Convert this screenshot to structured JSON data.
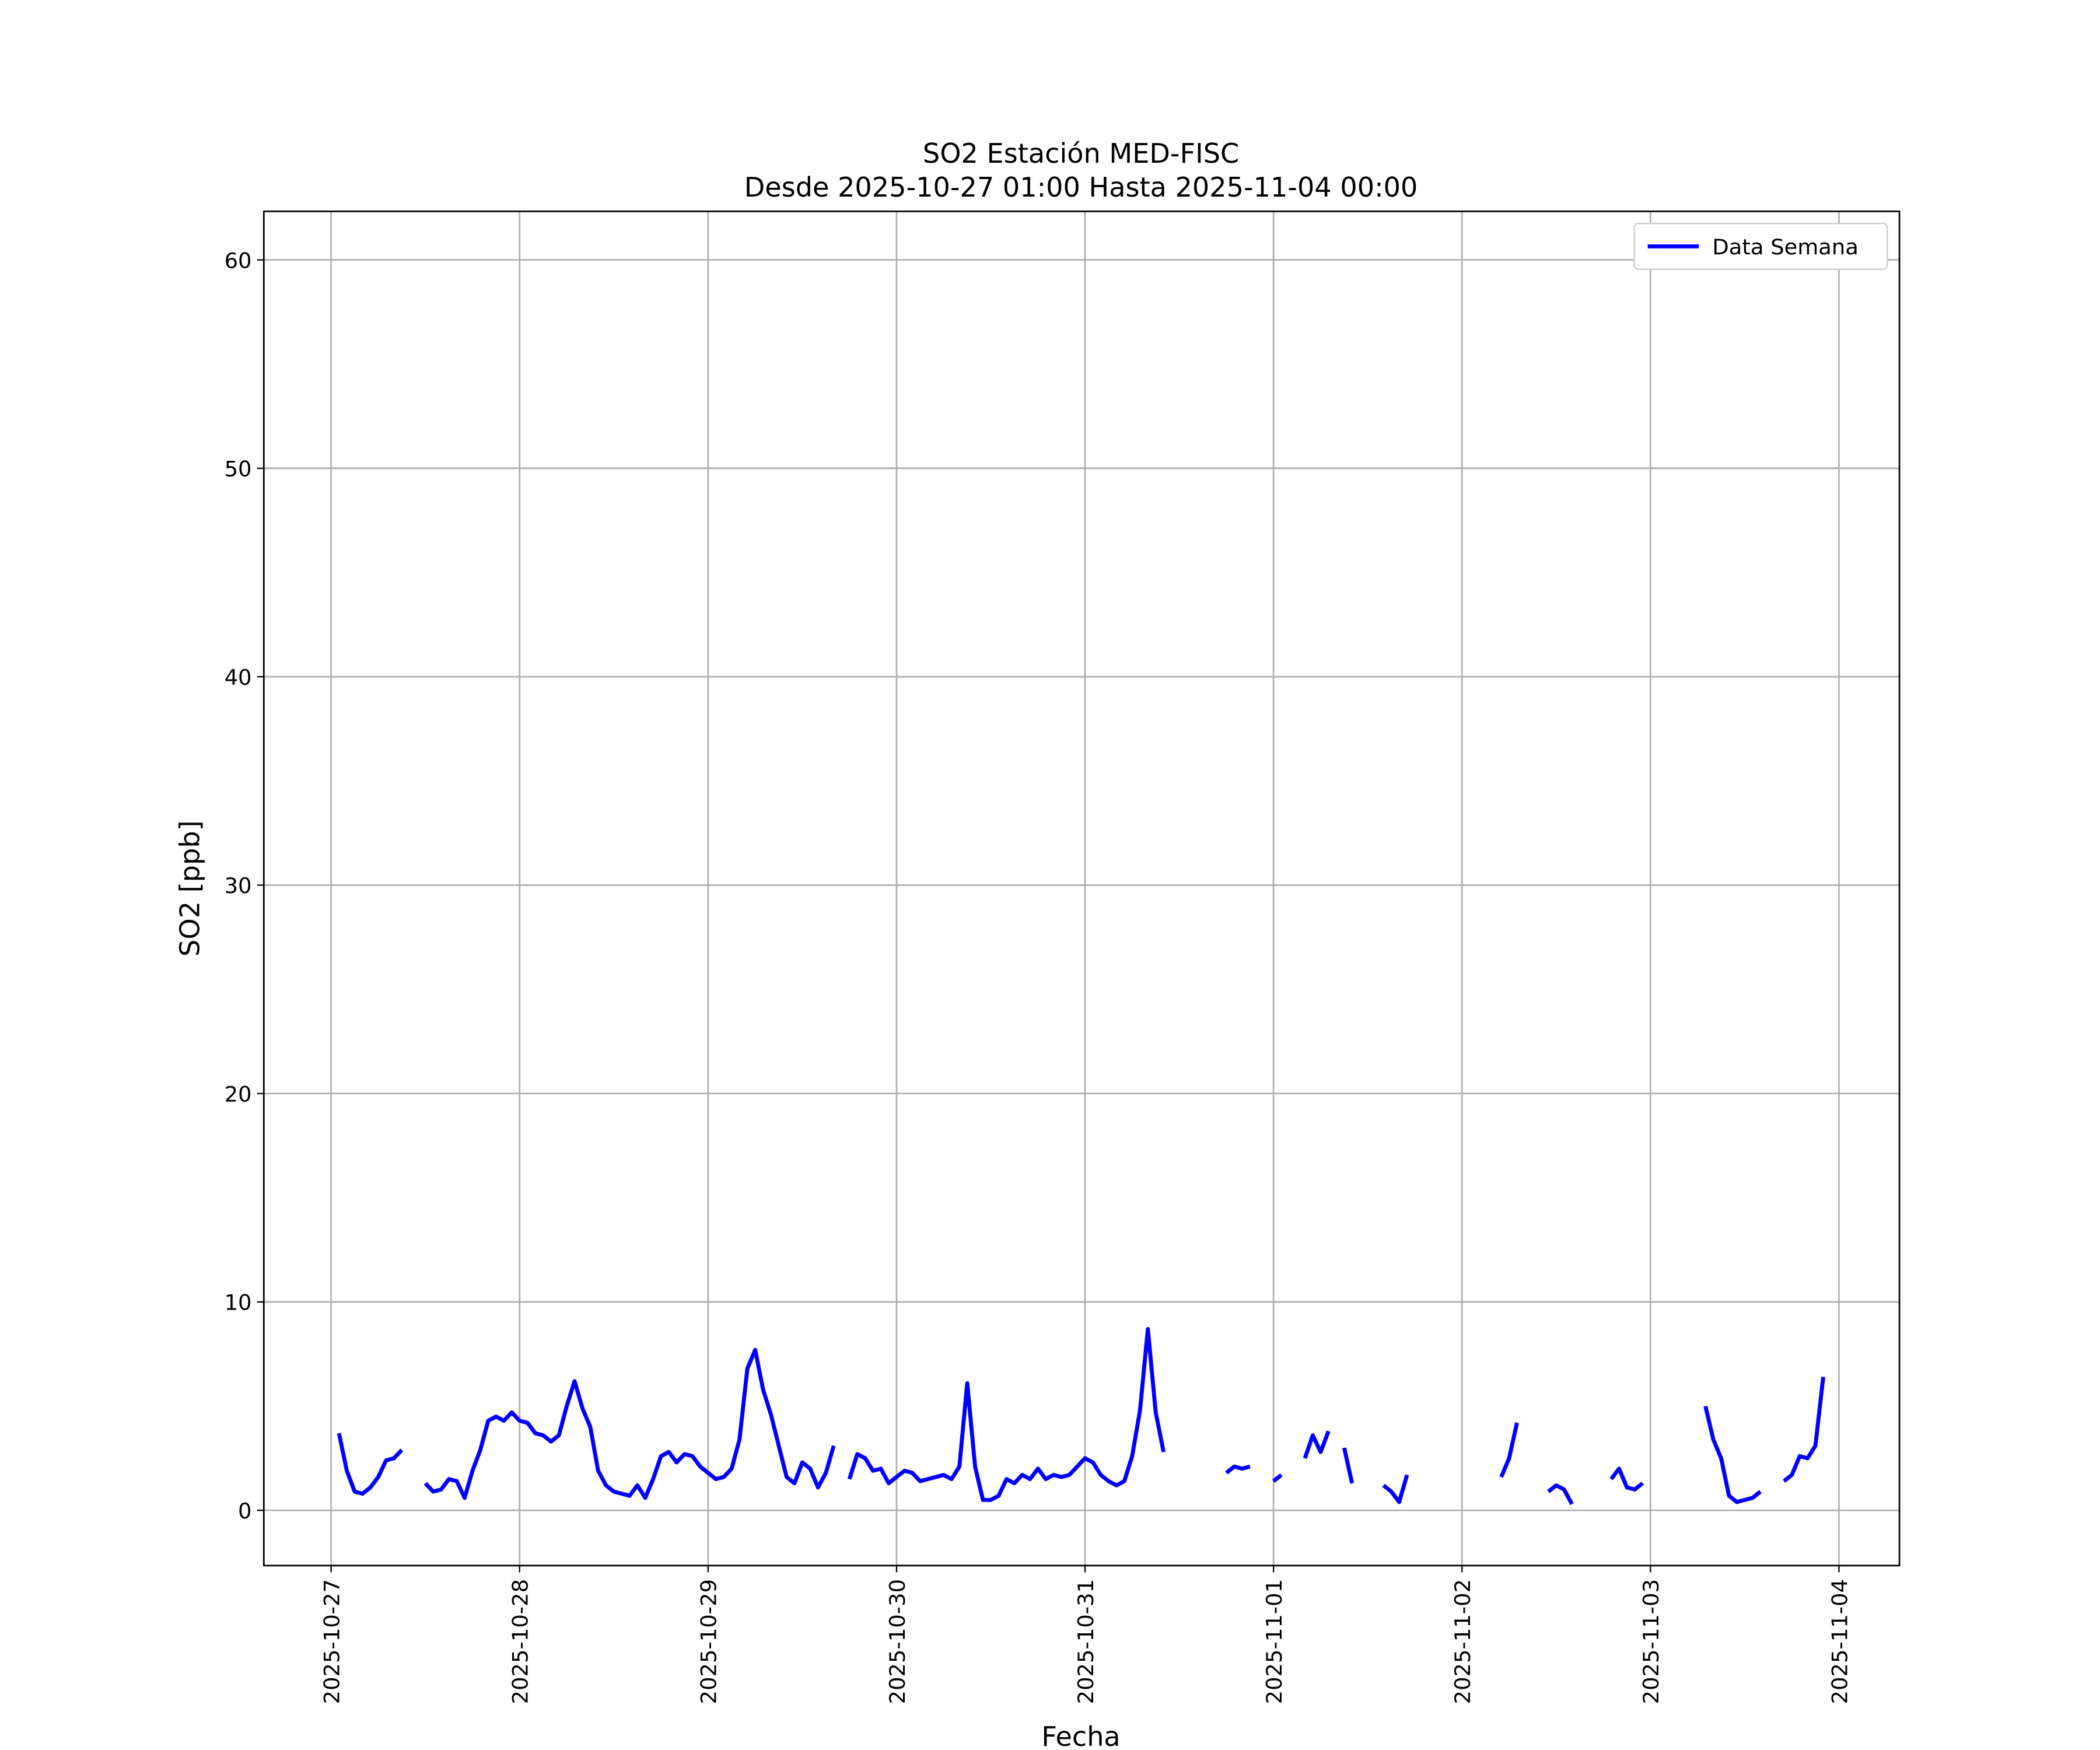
{
  "chart_data": {
    "type": "line",
    "title": "SO2 Estación MED-FISC",
    "subtitle": "Desde 2025-10-27 01:00 Hasta 2025-11-04 00:00",
    "x_label": "Fecha",
    "y_label": "SO2 [ppb]",
    "grid": true,
    "legend": "upper right",
    "xlim": [
      "2025-10-26 15:26",
      "2025-11-04 07:42"
    ],
    "xticks": [
      "2025-10-27",
      "2025-10-28",
      "2025-10-29",
      "2025-10-30",
      "2025-10-31",
      "2025-11-01",
      "2025-11-02",
      "2025-11-03",
      "2025-11-04"
    ],
    "ylim": [
      -2.65,
      62.33
    ],
    "yticks": [
      0,
      10,
      20,
      30,
      40,
      50,
      60
    ],
    "x": [
      "2025-10-27 01:00",
      "2025-10-27 02:00",
      "2025-10-27 03:00",
      "2025-10-27 04:00",
      "2025-10-27 05:00",
      "2025-10-27 06:00",
      "2025-10-27 07:00",
      "2025-10-27 08:00",
      "2025-10-27 09:00",
      "2025-10-27 10:00",
      "2025-10-27 11:00",
      "2025-10-27 12:00",
      "2025-10-27 13:00",
      "2025-10-27 14:00",
      "2025-10-27 15:00",
      "2025-10-27 16:00",
      "2025-10-27 17:00",
      "2025-10-27 18:00",
      "2025-10-27 19:00",
      "2025-10-27 20:00",
      "2025-10-27 21:00",
      "2025-10-27 22:00",
      "2025-10-27 23:00",
      "2025-10-28 00:00",
      "2025-10-28 01:00",
      "2025-10-28 02:00",
      "2025-10-28 03:00",
      "2025-10-28 04:00",
      "2025-10-28 05:00",
      "2025-10-28 06:00",
      "2025-10-28 07:00",
      "2025-10-28 08:00",
      "2025-10-28 09:00",
      "2025-10-28 10:00",
      "2025-10-28 11:00",
      "2025-10-28 12:00",
      "2025-10-28 13:00",
      "2025-10-28 14:00",
      "2025-10-28 15:00",
      "2025-10-28 16:00",
      "2025-10-28 17:00",
      "2025-10-28 18:00",
      "2025-10-28 19:00",
      "2025-10-28 20:00",
      "2025-10-28 21:00",
      "2025-10-28 22:00",
      "2025-10-28 23:00",
      "2025-10-29 00:00",
      "2025-10-29 01:00",
      "2025-10-29 02:00",
      "2025-10-29 03:00",
      "2025-10-29 04:00",
      "2025-10-29 05:00",
      "2025-10-29 06:00",
      "2025-10-29 07:00",
      "2025-10-29 08:00",
      "2025-10-29 09:00",
      "2025-10-29 10:00",
      "2025-10-29 11:00",
      "2025-10-29 12:00",
      "2025-10-29 13:00",
      "2025-10-29 14:00",
      "2025-10-29 15:00",
      "2025-10-29 16:00",
      "2025-10-29 17:00",
      "2025-10-29 18:00",
      "2025-10-29 19:00",
      "2025-10-29 20:00",
      "2025-10-29 21:00",
      "2025-10-29 22:00",
      "2025-10-29 23:00",
      "2025-10-30 00:00",
      "2025-10-30 01:00",
      "2025-10-30 02:00",
      "2025-10-30 03:00",
      "2025-10-30 04:00",
      "2025-10-30 05:00",
      "2025-10-30 06:00",
      "2025-10-30 07:00",
      "2025-10-30 08:00",
      "2025-10-30 09:00",
      "2025-10-30 10:00",
      "2025-10-30 11:00",
      "2025-10-30 12:00",
      "2025-10-30 13:00",
      "2025-10-30 14:00",
      "2025-10-30 15:00",
      "2025-10-30 16:00",
      "2025-10-30 17:00",
      "2025-10-30 18:00",
      "2025-10-30 19:00",
      "2025-10-30 20:00",
      "2025-10-30 21:00",
      "2025-10-30 22:00",
      "2025-10-30 23:00",
      "2025-10-31 00:00",
      "2025-10-31 01:00",
      "2025-10-31 02:00",
      "2025-10-31 03:00",
      "2025-10-31 04:00",
      "2025-10-31 05:00",
      "2025-10-31 06:00",
      "2025-10-31 07:00",
      "2025-10-31 08:00",
      "2025-10-31 09:00",
      "2025-10-31 10:00",
      "2025-10-31 11:00",
      "2025-10-31 12:00",
      "2025-10-31 13:00",
      "2025-10-31 14:00",
      "2025-10-31 15:00",
      "2025-10-31 16:00",
      "2025-10-31 17:00",
      "2025-10-31 18:00",
      "2025-10-31 19:00",
      "2025-10-31 20:00",
      "2025-10-31 21:00",
      "2025-10-31 22:00",
      "2025-10-31 23:00",
      "2025-11-01 00:00",
      "2025-11-01 01:00",
      "2025-11-01 02:00",
      "2025-11-01 03:00",
      "2025-11-01 04:00",
      "2025-11-01 05:00",
      "2025-11-01 06:00",
      "2025-11-01 07:00",
      "2025-11-01 08:00",
      "2025-11-01 09:00",
      "2025-11-01 10:00",
      "2025-11-01 11:00",
      "2025-11-01 12:00",
      "2025-11-01 13:00",
      "2025-11-01 14:00",
      "2025-11-01 15:00",
      "2025-11-01 16:00",
      "2025-11-01 17:00",
      "2025-11-01 18:00",
      "2025-11-01 19:00",
      "2025-11-01 20:00",
      "2025-11-01 21:00",
      "2025-11-01 22:00",
      "2025-11-01 23:00",
      "2025-11-02 00:00",
      "2025-11-02 01:00",
      "2025-11-02 02:00",
      "2025-11-02 03:00",
      "2025-11-02 04:00",
      "2025-11-02 05:00",
      "2025-11-02 06:00",
      "2025-11-02 07:00",
      "2025-11-02 08:00",
      "2025-11-02 09:00",
      "2025-11-02 10:00",
      "2025-11-02 11:00",
      "2025-11-02 12:00",
      "2025-11-02 13:00",
      "2025-11-02 14:00",
      "2025-11-02 15:00",
      "2025-11-02 16:00",
      "2025-11-02 17:00",
      "2025-11-02 18:00",
      "2025-11-02 19:00",
      "2025-11-02 20:00",
      "2025-11-02 21:00",
      "2025-11-02 22:00",
      "2025-11-02 23:00",
      "2025-11-03 00:00",
      "2025-11-03 01:00",
      "2025-11-03 02:00",
      "2025-11-03 03:00",
      "2025-11-03 04:00",
      "2025-11-03 05:00",
      "2025-11-03 06:00",
      "2025-11-03 07:00",
      "2025-11-03 08:00",
      "2025-11-03 09:00",
      "2025-11-03 10:00",
      "2025-11-03 11:00",
      "2025-11-03 12:00",
      "2025-11-03 13:00",
      "2025-11-03 14:00",
      "2025-11-03 15:00",
      "2025-11-03 16:00",
      "2025-11-03 17:00",
      "2025-11-03 18:00",
      "2025-11-03 19:00",
      "2025-11-03 20:00",
      "2025-11-03 21:00",
      "2025-11-03 22:00",
      "2025-11-03 23:00",
      "2025-11-04 00:00"
    ],
    "series": [
      {
        "name": "Data Semana",
        "color": "#0000ff",
        "values": [
          3.7,
          1.9,
          0.9,
          0.8,
          1.1,
          1.6,
          2.4,
          2.5,
          2.9,
          null,
          null,
          1.3,
          0.9,
          1.0,
          1.5,
          1.4,
          0.6,
          1.9,
          2.9,
          4.3,
          4.5,
          4.3,
          4.7,
          4.3,
          4.2,
          3.7,
          3.6,
          3.3,
          3.6,
          5.0,
          6.2,
          4.9,
          4.0,
          1.9,
          1.2,
          0.9,
          0.8,
          0.7,
          1.2,
          0.6,
          1.5,
          2.6,
          2.8,
          2.3,
          2.7,
          2.6,
          2.1,
          1.8,
          1.5,
          1.6,
          2.0,
          3.4,
          6.8,
          7.7,
          5.8,
          4.6,
          3.1,
          1.6,
          1.3,
          2.3,
          2.0,
          1.1,
          1.8,
          3.1,
          null,
          1.5,
          2.7,
          2.5,
          1.9,
          2.0,
          1.3,
          1.6,
          1.9,
          1.8,
          1.4,
          1.5,
          1.6,
          1.7,
          1.5,
          2.1,
          6.1,
          2.1,
          0.5,
          0.5,
          0.7,
          1.5,
          1.3,
          1.7,
          1.5,
          2.0,
          1.5,
          1.7,
          1.6,
          1.7,
          2.1,
          2.5,
          2.3,
          1.7,
          1.4,
          1.2,
          1.4,
          2.6,
          4.8,
          8.7,
          4.7,
          2.8,
          null,
          null,
          null,
          null,
          null,
          null,
          null,
          1.8,
          2.1,
          2.0,
          2.1,
          null,
          null,
          1.4,
          1.7,
          null,
          null,
          2.5,
          3.6,
          2.8,
          3.8,
          null,
          3.0,
          1.3,
          null,
          null,
          null,
          1.2,
          0.9,
          0.4,
          1.7,
          null,
          null,
          null,
          null,
          null,
          null,
          null,
          null,
          null,
          null,
          null,
          1.6,
          2.5,
          4.2,
          null,
          null,
          null,
          0.9,
          1.2,
          1.0,
          0.3,
          null,
          null,
          null,
          null,
          1.5,
          2.0,
          1.1,
          1.0,
          1.3,
          null,
          null,
          null,
          null,
          null,
          null,
          null,
          5.0,
          3.4,
          2.5,
          0.7,
          0.4,
          0.5,
          0.6,
          0.9,
          null,
          null,
          1.4,
          1.7,
          2.6,
          2.5,
          3.1,
          6.4,
          null,
          null
        ]
      }
    ]
  }
}
